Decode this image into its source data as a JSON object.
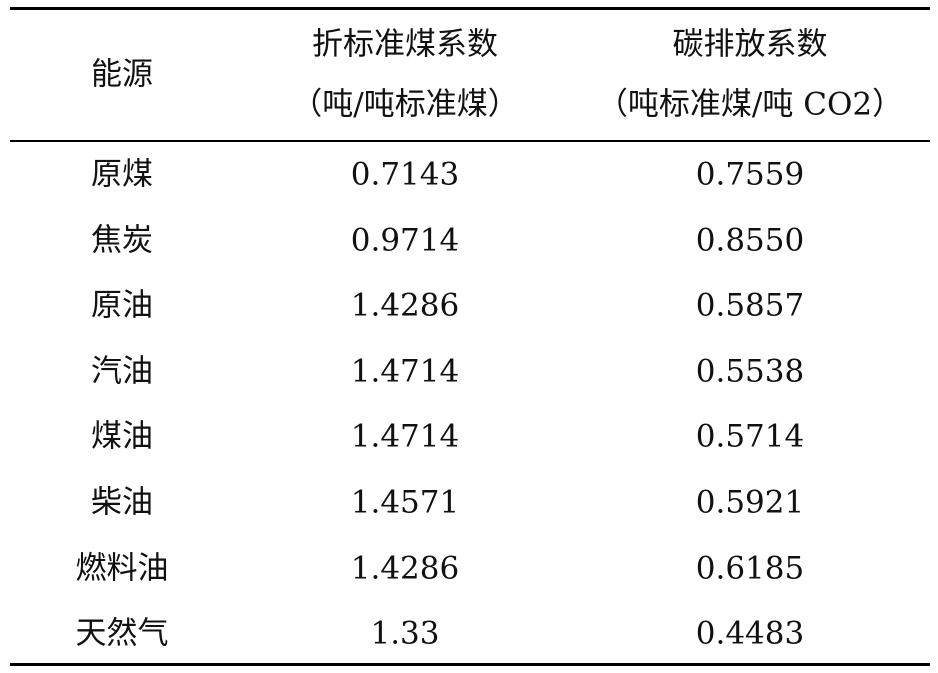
{
  "table": {
    "header": {
      "columns": [
        {
          "lines": [
            "能源"
          ]
        },
        {
          "lines": [
            "折标准煤系数",
            "（吨/吨标准煤）"
          ]
        },
        {
          "lines": [
            "碳排放系数",
            "（吨标准煤/吨 CO2）"
          ]
        }
      ]
    },
    "rows": [
      [
        "原煤",
        "0.7143",
        "0.7559"
      ],
      [
        "焦炭",
        "0.9714",
        "0.8550"
      ],
      [
        "原油",
        "1.4286",
        "0.5857"
      ],
      [
        "汽油",
        "1.4714",
        "0.5538"
      ],
      [
        "煤油",
        "1.4714",
        "0.5714"
      ],
      [
        "柴油",
        "1.4571",
        "0.5921"
      ],
      [
        "燃料油",
        "1.4286",
        "0.6185"
      ],
      [
        "天然气",
        "1.33",
        "0.4483"
      ]
    ]
  }
}
